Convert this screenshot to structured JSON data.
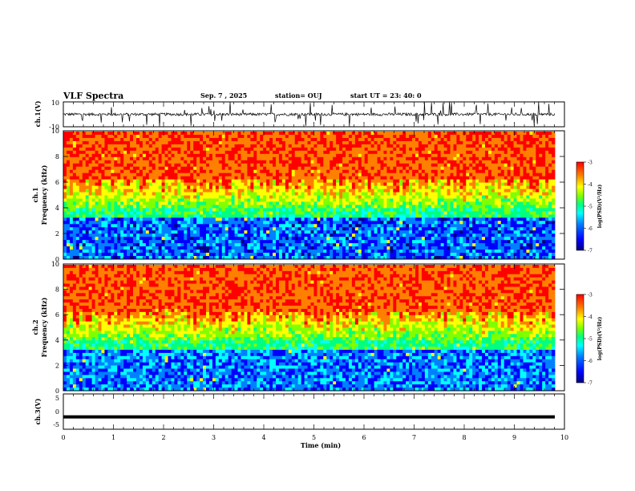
{
  "header": {
    "title": "VLF Spectra",
    "date": "Sep. 7  , 2025",
    "station": "station= OUJ",
    "start": "start  UT  =   23: 40: 0"
  },
  "chart_data": [
    {
      "type": "line",
      "name": "ch1-waveform",
      "ylabel": "ch.1(V)",
      "ylim": [
        -10,
        10
      ],
      "yticks": [
        "10",
        "-10"
      ],
      "description_values": {
        "baseline": 0,
        "typical_amplitude": 1.5,
        "spike_max": 10
      }
    },
    {
      "type": "heatmap",
      "name": "ch1-spectrogram",
      "ylabel_top": "ch.1",
      "ylabel": "Frequency  (kHz)",
      "ylim": [
        0,
        10
      ],
      "yticks": [
        "0",
        "2",
        "4",
        "6",
        "8",
        "10"
      ],
      "xlim": [
        0,
        9.8
      ],
      "colorbar": {
        "label": "log(PSD)(V²/Hz)",
        "range": [
          -7,
          -3
        ],
        "ticks": [
          "-3",
          "-4",
          "-5",
          "-6",
          "-7"
        ]
      }
    },
    {
      "type": "heatmap",
      "name": "ch2-spectrogram",
      "ylabel_top": "ch.2",
      "ylabel": "Frequency  (kHz)",
      "ylim": [
        0,
        10
      ],
      "yticks": [
        "0",
        "2",
        "4",
        "6",
        "8",
        "10"
      ],
      "xlim": [
        0,
        9.8
      ],
      "colorbar": {
        "label": "log(PSD)(V²/Hz)",
        "range": [
          -7,
          -3
        ],
        "ticks": [
          "-3",
          "-4",
          "-5",
          "-6",
          "-7"
        ]
      }
    },
    {
      "type": "line",
      "name": "ch3-waveform",
      "ylabel": "ch.3(V)",
      "ylim": [
        -5,
        5
      ],
      "yticks": [
        "5",
        "0",
        "-5"
      ],
      "level": -1.5,
      "xlabel": "Time  (min)",
      "xlim": [
        0,
        10
      ],
      "xticks": [
        "0",
        "1",
        "2",
        "3",
        "4",
        "5",
        "6",
        "7",
        "8",
        "9",
        "10"
      ]
    }
  ],
  "colors": {
    "scale": [
      "#000080",
      "#0000ff",
      "#0080ff",
      "#00ffff",
      "#00ff80",
      "#80ff00",
      "#ffff00",
      "#ff8000",
      "#ff0000"
    ]
  }
}
